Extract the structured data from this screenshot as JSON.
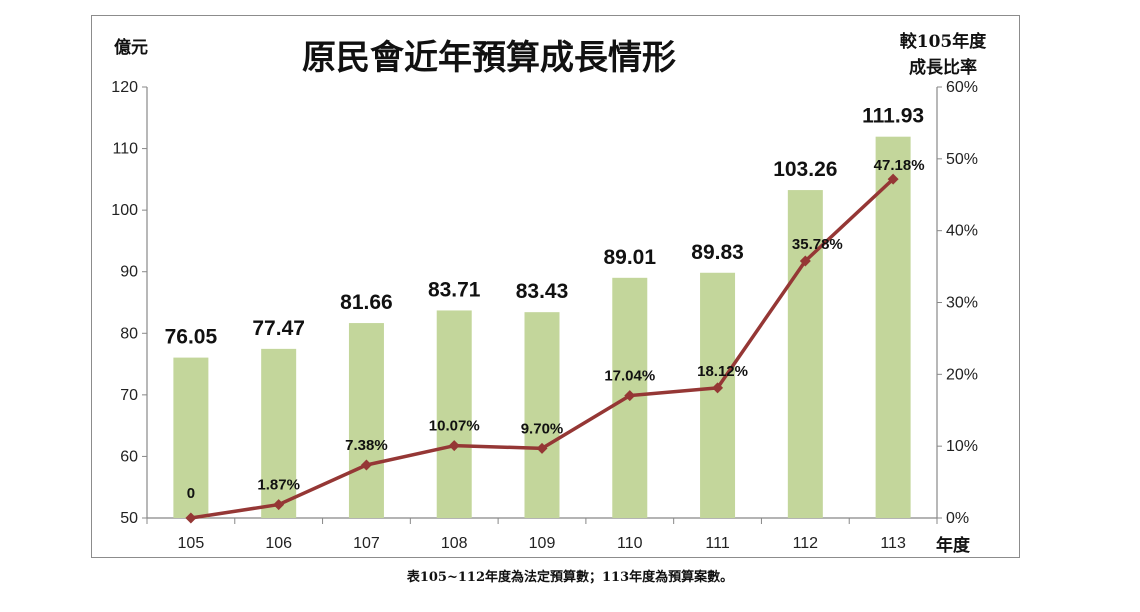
{
  "chart_data": {
    "type": "bar+line",
    "title": "原民會近年預算成長情形",
    "y_left_unit": "億元",
    "y_right_unit_line1": "較105年度",
    "y_right_unit_line2": "成長比率",
    "x_unit": "年度",
    "categories": [
      "105",
      "106",
      "107",
      "108",
      "109",
      "110",
      "111",
      "112",
      "113"
    ],
    "ylim_left": [
      50,
      120
    ],
    "yticks_left": [
      50,
      60,
      70,
      80,
      90,
      100,
      110,
      120
    ],
    "ylim_right": [
      0,
      60
    ],
    "yticks_right": [
      "0%",
      "10%",
      "20%",
      "30%",
      "40%",
      "50%",
      "60%"
    ],
    "series": [
      {
        "kind": "bar",
        "values": [
          76.05,
          77.47,
          81.66,
          83.71,
          83.43,
          89.01,
          89.83,
          103.26,
          111.93
        ],
        "labels": [
          "76.05",
          "77.47",
          "81.66",
          "83.71",
          "83.43",
          "89.01",
          "89.83",
          "103.26",
          "111.93"
        ],
        "color": "#c3d69b"
      },
      {
        "kind": "line",
        "values": [
          0,
          1.87,
          7.38,
          10.07,
          9.7,
          17.04,
          18.12,
          35.78,
          47.18
        ],
        "labels": [
          "0",
          "1.87%",
          "7.38%",
          "10.07%",
          "9.70%",
          "17.04%",
          "18.12%",
          "35.78%",
          "47.18%"
        ],
        "color": "#953735"
      }
    ],
    "grid": false
  },
  "footnote": "表105~112年度為法定預算數；113年度為預算案數。"
}
